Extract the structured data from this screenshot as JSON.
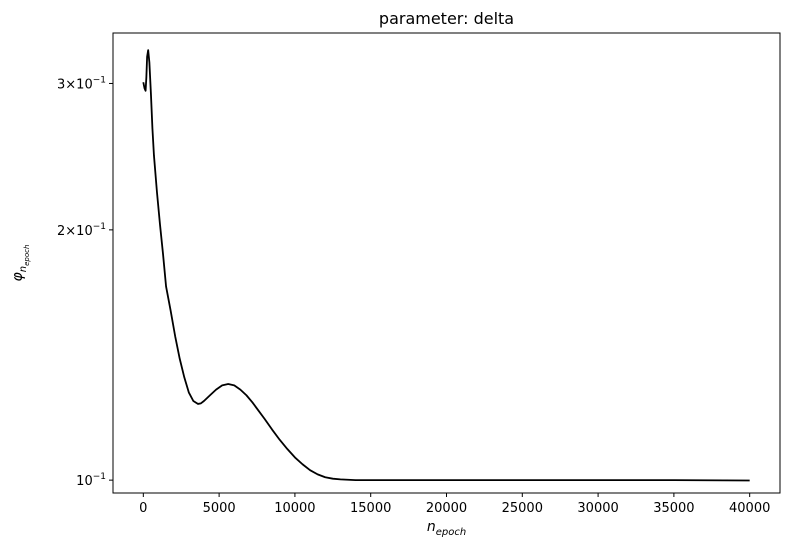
{
  "chart_data": {
    "type": "line",
    "title": "parameter: delta",
    "xlabel": {
      "base": "n",
      "sub": "epoch"
    },
    "ylabel": {
      "base": "φ",
      "sub": "n",
      "subsub": "epoch"
    },
    "xlim": [
      -2000,
      42000
    ],
    "ylim": [
      0.0965,
      0.345
    ],
    "yscale": "log",
    "grid": false,
    "x_ticks": [
      0,
      5000,
      10000,
      15000,
      20000,
      25000,
      30000,
      35000,
      40000
    ],
    "x_tick_labels": [
      "0",
      "5000",
      "10000",
      "15000",
      "20000",
      "25000",
      "30000",
      "35000",
      "40000"
    ],
    "y_ticks": [
      {
        "value": 0.3,
        "mant": "3",
        "exp": "−1"
      },
      {
        "value": 0.2,
        "mant": "2",
        "exp": "−1"
      },
      {
        "value": 0.1,
        "mant": "",
        "exp": "−1"
      }
    ],
    "series": [
      {
        "color": "#000000",
        "x": [
          0,
          80,
          150,
          200,
          250,
          320,
          400,
          500,
          600,
          700,
          900,
          1100,
          1300,
          1500,
          1800,
          2100,
          2400,
          2700,
          3000,
          3300,
          3600,
          3800,
          4000,
          4400,
          4800,
          5200,
          5600,
          6000,
          6400,
          6800,
          7200,
          7600,
          8000,
          8500,
          9000,
          9500,
          10000,
          10500,
          11000,
          11500,
          12000,
          12500,
          13000,
          13500,
          14000,
          14500,
          15000,
          15500,
          16000,
          16500,
          17000,
          18000,
          20000,
          25000,
          30000,
          35000,
          40000
        ],
        "y": [
          0.301,
          0.296,
          0.294,
          0.305,
          0.323,
          0.329,
          0.318,
          0.292,
          0.265,
          0.246,
          0.222,
          0.203,
          0.187,
          0.171,
          0.16,
          0.149,
          0.14,
          0.133,
          0.1275,
          0.1245,
          0.1235,
          0.1237,
          0.1245,
          0.1265,
          0.1285,
          0.13,
          0.1305,
          0.13,
          0.1285,
          0.1265,
          0.124,
          0.1212,
          0.1185,
          0.115,
          0.1118,
          0.109,
          0.1065,
          0.1045,
          0.1028,
          0.1016,
          0.1008,
          0.1004,
          0.1002,
          0.1001,
          0.1,
          0.1,
          0.1,
          0.1,
          0.1,
          0.1,
          0.1,
          0.1,
          0.1,
          0.1,
          0.1,
          0.1,
          0.0999
        ]
      }
    ]
  }
}
